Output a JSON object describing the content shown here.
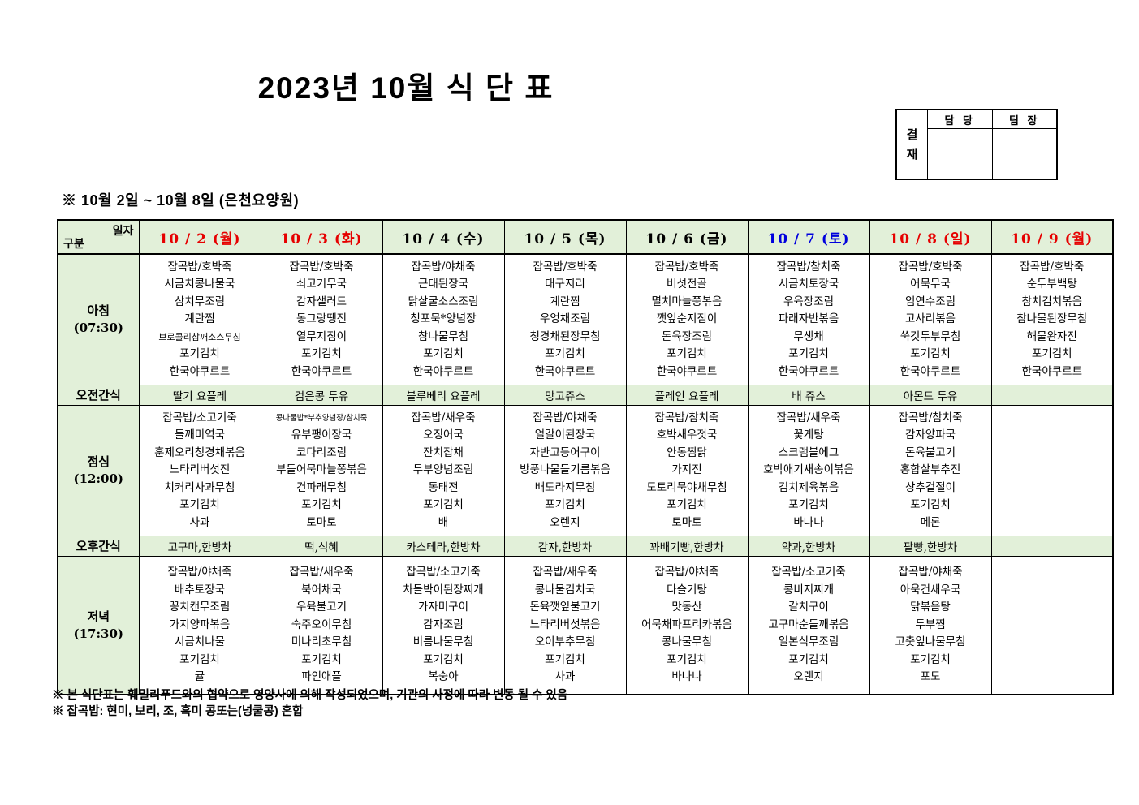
{
  "title": "2023년 10월 식 단 표",
  "approval": {
    "label": "결재",
    "columns": [
      "담 당",
      "팀 장"
    ]
  },
  "subtitle": "※ 10월 2일 ~ 10월 8일 (은천요양원)",
  "corner": {
    "top_right": "일자",
    "bottom_left": "구분"
  },
  "colors": {
    "red": "#e60000",
    "blue": "#0000dd",
    "black": "#000000",
    "header_bg": "#e2f0d9"
  },
  "days": [
    {
      "label": "10 / 2 (월)",
      "color": "red"
    },
    {
      "label": "10 / 3 (화)",
      "color": "red"
    },
    {
      "label": "10 / 4 (수)",
      "color": "black"
    },
    {
      "label": "10 / 5 (목)",
      "color": "black"
    },
    {
      "label": "10 / 6 (금)",
      "color": "black"
    },
    {
      "label": "10 / 7 (토)",
      "color": "blue"
    },
    {
      "label": "10 / 8 (일)",
      "color": "red"
    },
    {
      "label": "10 / 9 (월)",
      "color": "red"
    }
  ],
  "rows": [
    {
      "type": "meal",
      "label": "아침",
      "time": "(07:30)",
      "cells": [
        [
          "잡곡밥/호박죽",
          "시금치콩나물국",
          "삼치무조림",
          "계란찜",
          "브로콜리참깨소스무침",
          "포기김치",
          "한국야쿠르트"
        ],
        [
          "잡곡밥/호박죽",
          "쇠고기무국",
          "감자샐러드",
          "동그랑땡전",
          "열무지짐이",
          "포기김치",
          "한국야쿠르트"
        ],
        [
          "잡곡밥/야채죽",
          "근대된장국",
          "닭살굴소스조림",
          "청포묵*양념장",
          "참나물무침",
          "포기김치",
          "한국야쿠르트"
        ],
        [
          "잡곡밥/호박죽",
          "대구지리",
          "계란찜",
          "우엉채조림",
          "청경채된장무침",
          "포기김치",
          "한국야쿠르트"
        ],
        [
          "잡곡밥/호박죽",
          "버섯전골",
          "멸치마늘쫑볶음",
          "깻잎순지짐이",
          "돈육장조림",
          "포기김치",
          "한국야쿠르트"
        ],
        [
          "잡곡밥/참치죽",
          "시금치토장국",
          "우육장조림",
          "파래자반볶음",
          "무생채",
          "포기김치",
          "한국야쿠르트"
        ],
        [
          "잡곡밥/호박죽",
          "어묵무국",
          "임연수조림",
          "고사리볶음",
          "쑥갓두부무침",
          "포기김치",
          "한국야쿠르트"
        ],
        [
          "잡곡밥/호박죽",
          "순두부백탕",
          "참치김치볶음",
          "참나물된장무침",
          "해물완자전",
          "포기김치",
          "한국야쿠르트"
        ]
      ]
    },
    {
      "type": "snack",
      "label": "오전간식",
      "cells": [
        "딸기 요플레",
        "검은콩 두유",
        "블루베리 요플레",
        "망고쥬스",
        "플레인 요플레",
        "배 쥬스",
        "아몬드 두유",
        ""
      ]
    },
    {
      "type": "meal",
      "label": "점심",
      "time": "(12:00)",
      "cells": [
        [
          "잡곡밥/소고기죽",
          "들깨미역국",
          "훈제오리청경채볶음",
          "느타리버섯전",
          "치커리사과무침",
          "포기김치",
          "사과"
        ],
        [
          "콩나물밥*부추양념장/참치죽",
          "유부팽이장국",
          "코다리조림",
          "부들어묵마늘쫑볶음",
          "건파래무침",
          "포기김치",
          "토마토"
        ],
        [
          "잡곡밥/새우죽",
          "오징어국",
          "잔치잡채",
          "두부양념조림",
          "동태전",
          "포기김치",
          "배"
        ],
        [
          "잡곡밥/야채죽",
          "얼갈이된장국",
          "자반고등어구이",
          "방풍나물들기름볶음",
          "배도라지무침",
          "포기김치",
          "오렌지"
        ],
        [
          "잡곡밥/참치죽",
          "호박새우젓국",
          "안동찜닭",
          "가지전",
          "도토리묵야채무침",
          "포기김치",
          "토마토"
        ],
        [
          "잡곡밥/새우죽",
          "꽃게탕",
          "스크램블에그",
          "호박애기새송이볶음",
          "김치제육볶음",
          "포기김치",
          "바나나"
        ],
        [
          "잡곡밥/참치죽",
          "감자양파국",
          "돈육불고기",
          "홍합살부추전",
          "상추겉절이",
          "포기김치",
          "메론"
        ],
        []
      ]
    },
    {
      "type": "snack",
      "label": "오후간식",
      "cells": [
        "고구마,한방차",
        "떡,식혜",
        "카스테라,한방차",
        "감자,한방차",
        "꽈배기빵,한방차",
        "약과,한방차",
        "팥빵,한방차",
        ""
      ]
    },
    {
      "type": "meal",
      "label": "저녁",
      "time": "(17:30)",
      "cells": [
        [
          "잡곡밥/야채죽",
          "배추토장국",
          "꽁치캔무조림",
          "가지양파볶음",
          "시금치나물",
          "포기김치",
          "귤"
        ],
        [
          "잡곡밥/새우죽",
          "북어채국",
          "우육불고기",
          "숙주오이무침",
          "미나리초무침",
          "포기김치",
          "파인애플"
        ],
        [
          "잡곡밥/소고기죽",
          "차돌박이된장찌개",
          "가자미구이",
          "감자조림",
          "비름나물무침",
          "포기김치",
          "복숭아"
        ],
        [
          "잡곡밥/새우죽",
          "콩나물김치국",
          "돈육깻잎불고기",
          "느타리버섯볶음",
          "오이부추무침",
          "포기김치",
          "사과"
        ],
        [
          "잡곡밥/야채죽",
          "다슬기탕",
          "맛동산",
          "어묵채파프리카볶음",
          "콩나물무침",
          "포기김치",
          "바나나"
        ],
        [
          "잡곡밥/소고기죽",
          "콩비지찌개",
          "갈치구이",
          "고구마순들깨볶음",
          "일본식무조림",
          "포기김치",
          "오렌지"
        ],
        [
          "잡곡밥/야채죽",
          "아욱건새우국",
          "닭볶음탕",
          "두부찜",
          "고춧잎나물무침",
          "포기김치",
          "포도"
        ],
        []
      ]
    }
  ],
  "footnotes": [
    "※ 본 식단표는 훼밀리푸드와의 협약으로 영양사에 의해 작성되었으며, 기관의 사정에 따라 변동 될 수 있음",
    "※ 잡곡밥: 현미, 보리, 조, 흑미 콩또는(넝쿨콩) 혼합"
  ]
}
